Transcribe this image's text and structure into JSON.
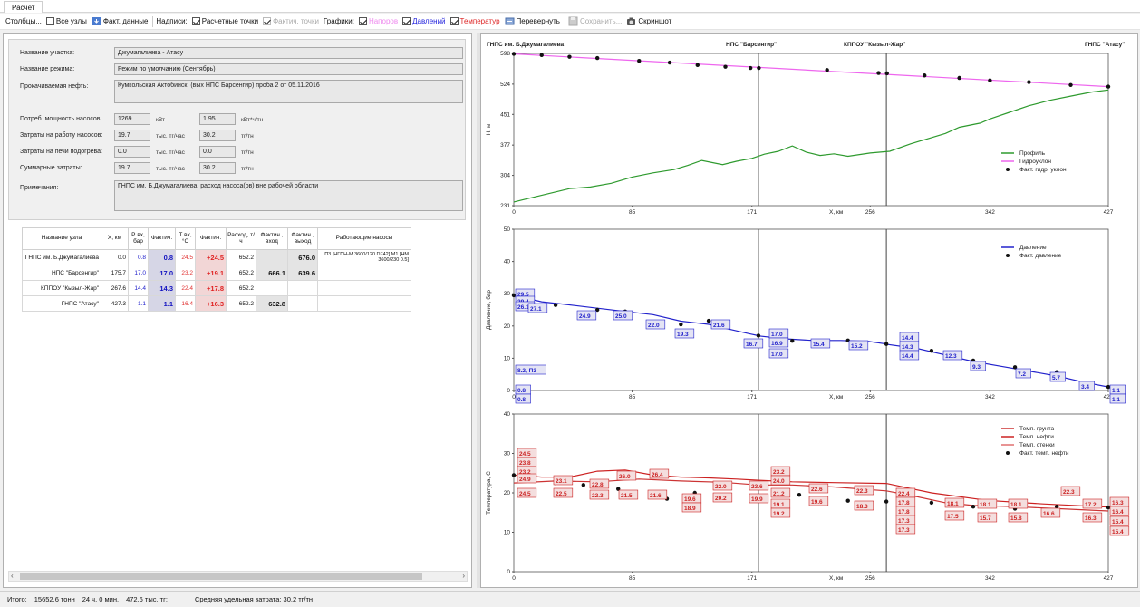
{
  "window": {
    "tab": "Расчет"
  },
  "toolbar": {
    "columns": "Столбцы...",
    "all_nodes": "Все узлы",
    "fact_data": "Факт. данные",
    "labels": "Надписи:",
    "calc_points": "Расчетные точки",
    "fact_points": "Фактич. точки",
    "graphs": "Графики:",
    "head": "Напоров",
    "pressure": "Давлений",
    "temperature": "Температур",
    "flip": "Перевернуть",
    "save": "Сохранить...",
    "screenshot": "Скриншот",
    "colors": {
      "head": "#ee66ee",
      "pressure": "#2222dd",
      "temperature": "#dd2222"
    }
  },
  "info": {
    "section_label": "Название участка:",
    "section_value": "Джумагалиева - Атасу",
    "mode_label": "Название режима:",
    "mode_value": "Режим по умолчанию (Сентябрь)",
    "oil_label": "Прокачиваемая нефть:",
    "oil_value": "Кумкольская Актобинск. (вых НПС Барсенгир) проба 2 от 05.11.2016",
    "power_label": "Потреб. мощность насосов:",
    "power_value": "1269",
    "power_unit": "кВт",
    "power_value2": "1.95",
    "power_unit2": "кВт*ч/тн",
    "pump_cost_label": "Затраты на работу насосов:",
    "pump_cost_value": "19.7",
    "pump_cost_unit": "тыс. тг/час",
    "pump_cost_value2": "30.2",
    "pump_cost_unit2": "тг/тн",
    "heat_cost_label": "Затраты на печи подогрева:",
    "heat_cost_value": "0.0",
    "heat_cost_unit": "тыс. тг/час",
    "heat_cost_value2": "0.0",
    "heat_cost_unit2": "тг/тн",
    "total_cost_label": "Суммарные затраты:",
    "total_cost_value": "19.7",
    "total_cost_unit": "тыс. тг/час",
    "total_cost_value2": "30.2",
    "total_cost_unit2": "тг/тн",
    "notes_label": "Примечания:",
    "notes_value": "ГНПС им. Б.Джумагалиева: расход насоса(ов) вне рабочей области"
  },
  "table": {
    "headers": [
      "Название узла",
      "Х, км",
      "Р вх, бар",
      "Фактич.",
      "Т вх, °С",
      "Фактич.",
      "Расход, т/ч",
      "Фактич., вход",
      "Фактич., выход",
      "Работающие насосы"
    ],
    "rows": [
      {
        "name": "ГНПС им. Б.Джумагалиева",
        "x": "0.0",
        "p": "0.8",
        "pf": "0.8",
        "t": "24.5",
        "tf": "+24.5",
        "q": "652.2",
        "fin": "",
        "fout": "676.0",
        "pumps": "П3 [НГПН-М 3600/120 D742] М1 [НМ 3600/230 0.5]"
      },
      {
        "name": "НПС \"Барсенгир\"",
        "x": "175.7",
        "p": "17.0",
        "pf": "17.0",
        "t": "23.2",
        "tf": "+19.1",
        "q": "652.2",
        "fin": "666.1",
        "fout": "639.6",
        "pumps": ""
      },
      {
        "name": "КППОУ \"Кызыл-Жар\"",
        "x": "267.6",
        "p": "14.4",
        "pf": "14.3",
        "t": "22.4",
        "tf": "+17.8",
        "q": "652.2",
        "fin": "",
        "fout": "",
        "pumps": ""
      },
      {
        "name": "ГНПС \"Атасу\"",
        "x": "427.3",
        "p": "1.1",
        "pf": "1.1",
        "t": "16.4",
        "tf": "+16.3",
        "q": "652.2",
        "fin": "632.8",
        "fout": "",
        "pumps": ""
      }
    ]
  },
  "status": {
    "total": "Итого:",
    "tons": "15652.6 тонн",
    "time": "24 ч. 0 мин.",
    "cost": "472.6 тыс. тг;",
    "specific": "Средняя удельная затрата: 30.2 тг/тн"
  },
  "chart_data": [
    {
      "type": "line",
      "top_labels": [
        "ГНПС им. Б.Джумагалиева",
        "НПС \"Барсенгир\"",
        "КППОУ \"Кызыл-Жар\"",
        "ГНПС \"Атасу\""
      ],
      "xlabel": "X, км",
      "ylabel": "Н, м",
      "xlim": [
        0,
        427
      ],
      "ylim": [
        231,
        598
      ],
      "xticks": [
        "0",
        "85",
        "171",
        "256",
        "342",
        "427"
      ],
      "yticks": [
        "231",
        "304",
        "377",
        "451",
        "524",
        "598"
      ],
      "station_x": [
        175.7,
        267.6
      ],
      "legend": [
        "Профиль",
        "Гидроуклон",
        "Факт. гидр. уклон"
      ],
      "series": [
        {
          "name": "Профиль",
          "color": "#2e9a2e",
          "x": [
            0,
            10,
            25,
            40,
            55,
            70,
            85,
            100,
            115,
            125,
            135,
            150,
            160,
            171,
            180,
            190,
            200,
            210,
            220,
            230,
            240,
            256,
            270,
            285,
            300,
            310,
            320,
            335,
            342,
            355,
            370,
            385,
            400,
            415,
            427
          ],
          "y": [
            240,
            248,
            260,
            272,
            276,
            285,
            300,
            310,
            318,
            328,
            340,
            330,
            338,
            345,
            355,
            362,
            375,
            360,
            352,
            356,
            350,
            358,
            362,
            380,
            395,
            405,
            420,
            430,
            440,
            455,
            472,
            485,
            495,
            505,
            510
          ]
        },
        {
          "name": "Гидроуклон",
          "color": "#ee66ee",
          "x": [
            0,
            427
          ],
          "y": [
            597,
            518
          ]
        }
      ],
      "points": {
        "name": "Факт. гидр. уклон",
        "x": [
          0,
          20,
          40,
          60,
          90,
          112,
          132,
          152,
          170,
          176,
          225,
          262,
          268,
          295,
          320,
          342,
          370,
          400,
          427
        ],
        "y": [
          597,
          594,
          590,
          587,
          580,
          576,
          570,
          566,
          563,
          563,
          558,
          551,
          550,
          545,
          539,
          533,
          529,
          522,
          518
        ]
      }
    },
    {
      "type": "line",
      "xlabel": "X, км",
      "ylabel": "Давление, бар",
      "xlim": [
        0,
        427
      ],
      "ylim": [
        0,
        50
      ],
      "xticks": [
        "0",
        "85",
        "171",
        "256",
        "342",
        "427"
      ],
      "yticks": [
        "0",
        "10",
        "20",
        "30",
        "40",
        "50"
      ],
      "station_x": [
        175.7,
        267.6
      ],
      "legend": [
        "Давление",
        "Факт. давление"
      ],
      "series": [
        {
          "name": "Давление",
          "color": "#2222cc",
          "x": [
            0,
            10,
            20,
            35,
            60,
            80,
            100,
            120,
            140,
            155,
            170,
            175.7,
            176,
            195,
            215,
            235,
            255,
            267.6,
            268,
            290,
            310,
            330,
            350,
            370,
            390,
            410,
            427
          ],
          "y": [
            29.5,
            28.5,
            27.5,
            26.8,
            25.5,
            24.5,
            23.5,
            21.5,
            20.5,
            19.0,
            17.5,
            17.0,
            16.9,
            16.0,
            15.5,
            15.5,
            15.2,
            14.4,
            14.3,
            13.0,
            11.0,
            9.0,
            7.5,
            6.0,
            4.5,
            2.5,
            1.1
          ]
        }
      ],
      "points": {
        "name": "Факт. давление",
        "x": [
          0,
          30,
          60,
          80,
          120,
          140,
          175.7,
          200,
          240,
          267.6,
          300,
          330,
          360,
          390,
          427
        ],
        "y": [
          29.5,
          26.5,
          25.0,
          24.5,
          20.5,
          21.6,
          17.0,
          15.4,
          15.5,
          14.4,
          12.3,
          9.3,
          7.2,
          5.7,
          1.1
        ]
      },
      "labels": [
        "29.5",
        "29.4",
        "26.1",
        "27.1",
        "24.9",
        "25.0",
        "22.0",
        "19.3",
        "21.6",
        "16.7",
        "17.0",
        "16.9",
        "17.0",
        "15.4",
        "15.2",
        "14.4",
        "14.3",
        "14.4",
        "12.3",
        "9.3",
        "7.2",
        "5.7",
        "3.4",
        "1.1",
        "1.1",
        "8.2, П3",
        "0.8",
        "0.8"
      ]
    },
    {
      "type": "line",
      "xlabel": "X, км",
      "ylabel": "Температура, С",
      "xlim": [
        0,
        427
      ],
      "ylim": [
        0,
        40
      ],
      "xticks": [
        "0",
        "85",
        "171",
        "256",
        "342",
        "427"
      ],
      "yticks": [
        "0",
        "10",
        "20",
        "30",
        "40"
      ],
      "station_x": [
        175.7,
        267.6
      ],
      "legend": [
        "Темп. грунта",
        "Темп. нефти",
        "Темп. стенки",
        "Факт. темп. нефти"
      ],
      "series": [
        {
          "name": "Темп. нефти",
          "color": "#cc2222",
          "x": [
            0,
            20,
            40,
            60,
            80,
            100,
            120,
            140,
            160,
            175.7,
            200,
            230,
            267.6,
            300,
            340,
            380,
            427
          ],
          "y": [
            24.5,
            24.0,
            24.0,
            25.5,
            25.8,
            24.5,
            24.0,
            23.8,
            23.5,
            23.2,
            22.8,
            22.6,
            22.4,
            20.0,
            18.1,
            17.2,
            16.4
          ]
        },
        {
          "name": "Темп. грунта",
          "color": "#cc3333",
          "x": [
            0,
            30,
            60,
            90,
            120,
            150,
            175.7,
            200,
            230,
            267.6,
            290,
            310,
            330,
            360,
            390,
            427
          ],
          "y": [
            22.5,
            23.0,
            22.8,
            23.5,
            23.0,
            22.7,
            22.0,
            22.0,
            21.5,
            20.5,
            19.0,
            17.5,
            16.8,
            16.5,
            16.0,
            15.4
          ]
        }
      ],
      "points": {
        "name": "Факт. темп. нефти",
        "x": [
          0,
          30,
          50,
          75,
          110,
          130,
          150,
          176,
          205,
          240,
          267.6,
          300,
          330,
          360,
          390,
          427
        ],
        "y": [
          24.5,
          22.5,
          22.0,
          21.0,
          18.5,
          20.0,
          19.5,
          19.1,
          19.5,
          18.0,
          17.8,
          17.5,
          16.5,
          16.0,
          16.5,
          16.3
        ]
      },
      "labels": [
        "24.5",
        "23.8",
        "23.2",
        "24.9",
        "24.5",
        "23.1",
        "22.5",
        "22.8",
        "22.3",
        "26.0",
        "26.4",
        "21.5",
        "21.6",
        "19.6",
        "18.9",
        "22.0",
        "20.2",
        "23.6",
        "19.9",
        "23.2",
        "24.0",
        "21.2",
        "19.1",
        "19.2",
        "22.6",
        "19.6",
        "22.3",
        "18.3",
        "22.4",
        "17.8",
        "17.8",
        "17.3",
        "17.3",
        "18.1",
        "17.5",
        "18.1",
        "15.7",
        "18.1",
        "15.8",
        "16.6",
        "17.2",
        "16.3",
        "16.3",
        "16.4",
        "15.4",
        "15.4",
        "22.3"
      ]
    }
  ]
}
